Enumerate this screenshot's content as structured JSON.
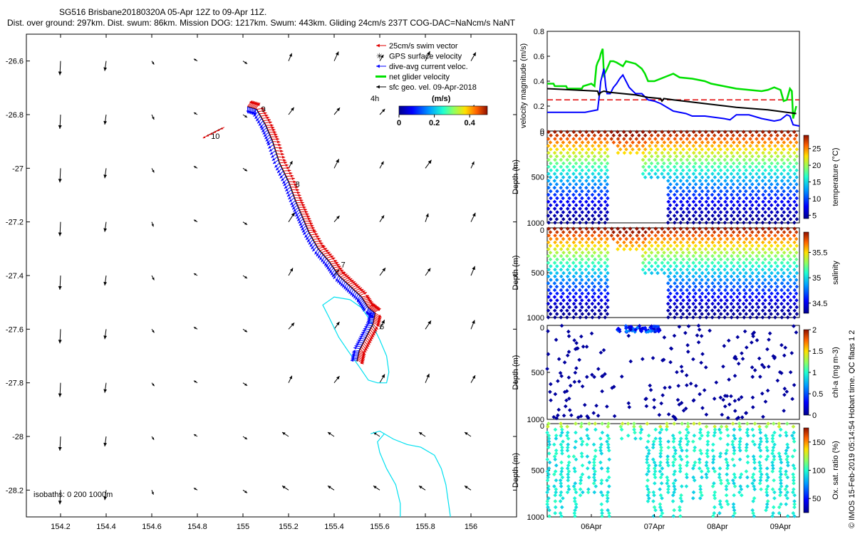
{
  "title": {
    "line1": "SG516 Brisbane20180320A 05-Apr 12Z to 09-Apr 11Z.",
    "line2": "Dist. over ground: 297km. Dist. swum: 86km. Mission DOG: 1217km. Swum: 443km. Gliding 24cm/s 237T COG-DAC=NaNcm/s NaNT"
  },
  "credit": "© IMOS 15-Feb-2019 05:14:54 Hobart time. QC flags 1  2",
  "colors": {
    "swim_vector": "#e00000",
    "gps_velocity": "#9030c0",
    "dac": "#0000ff",
    "net": "#00e000",
    "sfc": "#000000",
    "isobath": "#00e0f0",
    "threshold": "#e00000"
  },
  "map": {
    "xlim": [
      154.05,
      156.2
    ],
    "ylim": [
      -28.3,
      -26.5
    ],
    "xticks": [
      "154.2",
      "154.4",
      "154.6",
      "154.8",
      "155",
      "155.2",
      "155.4",
      "155.6",
      "155.8",
      "156"
    ],
    "yticks": [
      "-26.6",
      "-26.8",
      "-27",
      "-27.2",
      "-27.4",
      "-27.6",
      "-27.8",
      "-28",
      "-28.2"
    ],
    "legend": [
      {
        "label": "25cm/s swim vector",
        "kind": "arrow",
        "color": "#e00000"
      },
      {
        "label": "GPS surface velocity",
        "kind": "star",
        "color": "#9030c0"
      },
      {
        "label": "dive-avg current veloc.",
        "kind": "arrow",
        "color": "#0000ff"
      },
      {
        "label": "net glider velocity",
        "kind": "thick",
        "color": "#00e000"
      },
      {
        "label": "sfc geo. vel. 09-Apr-2018",
        "kind": "arrow",
        "color": "#000000"
      }
    ],
    "scale_label": "4h",
    "colorbar_units": "(m/s)",
    "colorbar_ticks": [
      "0",
      "0.2",
      "0.4"
    ],
    "colorbar_range": [
      0,
      0.5
    ],
    "isobaths_label": "isobaths: 0   200  1000m",
    "day_labels": [
      {
        "text": "9",
        "lon": 155.08,
        "lat": -26.79
      },
      {
        "text": "10",
        "lon": 154.86,
        "lat": -26.89
      },
      {
        "text": "8",
        "lon": 155.23,
        "lat": -27.07
      },
      {
        "text": "7",
        "lon": 155.43,
        "lat": -27.37
      },
      {
        "text": "6",
        "lon": 155.6,
        "lat": -27.6
      }
    ],
    "track": [
      [
        155.02,
        -26.77
      ],
      [
        155.06,
        -26.78
      ],
      [
        155.1,
        -26.84
      ],
      [
        155.13,
        -26.9
      ],
      [
        155.16,
        -26.98
      ],
      [
        155.2,
        -27.05
      ],
      [
        155.23,
        -27.12
      ],
      [
        155.26,
        -27.18
      ],
      [
        155.29,
        -27.24
      ],
      [
        155.33,
        -27.3
      ],
      [
        155.38,
        -27.35
      ],
      [
        155.42,
        -27.4
      ],
      [
        155.47,
        -27.44
      ],
      [
        155.52,
        -27.48
      ],
      [
        155.55,
        -27.52
      ],
      [
        155.58,
        -27.54
      ],
      [
        155.57,
        -27.58
      ],
      [
        155.54,
        -27.63
      ],
      [
        155.51,
        -27.68
      ],
      [
        155.5,
        -27.72
      ]
    ],
    "track_end": [
      [
        154.84,
        -26.88
      ],
      [
        154.91,
        -26.85
      ]
    ],
    "isobath_1": [
      [
        155.47,
        -27.49
      ],
      [
        155.4,
        -27.48
      ],
      [
        155.35,
        -27.51
      ],
      [
        155.38,
        -27.56
      ],
      [
        155.42,
        -27.63
      ],
      [
        155.46,
        -27.68
      ],
      [
        155.51,
        -27.74
      ],
      [
        155.55,
        -27.79
      ],
      [
        155.59,
        -27.8
      ],
      [
        155.63,
        -27.8
      ],
      [
        155.64,
        -27.76
      ],
      [
        155.63,
        -27.7
      ],
      [
        155.6,
        -27.64
      ],
      [
        155.56,
        -27.57
      ],
      [
        155.52,
        -27.52
      ],
      [
        155.47,
        -27.49
      ]
    ],
    "isobath_2": [
      [
        155.56,
        -27.99
      ],
      [
        155.6,
        -27.98
      ],
      [
        155.66,
        -28.01
      ],
      [
        155.72,
        -28.03
      ],
      [
        155.78,
        -28.04
      ],
      [
        155.84,
        -28.07
      ],
      [
        155.87,
        -28.12
      ],
      [
        155.89,
        -28.18
      ],
      [
        155.9,
        -28.24
      ],
      [
        155.91,
        -28.3
      ]
    ],
    "isobath_3": [
      [
        155.69,
        -28.3
      ],
      [
        155.69,
        -28.25
      ],
      [
        155.67,
        -28.18
      ],
      [
        155.63,
        -28.12
      ],
      [
        155.6,
        -28.06
      ],
      [
        155.59,
        -28.02
      ],
      [
        155.62,
        -27.99
      ]
    ]
  },
  "chart_data": [
    {
      "type": "line",
      "title": "",
      "xlabel": "",
      "ylabel": "velocity magnitude (m/s)",
      "xlim": [
        0,
        4
      ],
      "ylim": [
        0,
        0.8
      ],
      "yticks": [
        "0",
        "0.2",
        "0.4",
        "0.6",
        "0.8"
      ],
      "threshold": 0.25,
      "series": [
        {
          "name": "net glider velocity",
          "color": "#00e000",
          "x": [
            0,
            0.1,
            0.12,
            0.3,
            0.32,
            0.55,
            0.57,
            0.7,
            0.75,
            0.78,
            0.8,
            0.83,
            0.85,
            0.88,
            0.9,
            0.95,
            1.0,
            1.05,
            1.1,
            1.2,
            1.25,
            1.4,
            1.5,
            1.55,
            1.6,
            1.7,
            2.0,
            2.1,
            2.3,
            2.5,
            2.6,
            2.8,
            3.0,
            3.2,
            3.4,
            3.5,
            3.55,
            3.6,
            3.7,
            3.75,
            3.8,
            3.85,
            3.88,
            3.9,
            3.95
          ],
          "y": [
            0.38,
            0.38,
            0.36,
            0.36,
            0.34,
            0.34,
            0.36,
            0.38,
            0.36,
            0.52,
            0.55,
            0.58,
            0.62,
            0.66,
            0.45,
            0.5,
            0.56,
            0.56,
            0.55,
            0.52,
            0.56,
            0.54,
            0.5,
            0.46,
            0.4,
            0.4,
            0.46,
            0.43,
            0.42,
            0.4,
            0.38,
            0.36,
            0.34,
            0.33,
            0.32,
            0.33,
            0.34,
            0.35,
            0.33,
            0.24,
            0.25,
            0.34,
            0.32,
            0.1,
            0.2
          ]
        },
        {
          "name": "dive-avg current veloc.",
          "color": "#0000ff",
          "x": [
            0,
            0.3,
            0.6,
            0.8,
            0.83,
            0.85,
            0.9,
            0.93,
            0.95,
            1.0,
            1.05,
            1.1,
            1.15,
            1.2,
            1.3,
            1.4,
            1.5,
            1.6,
            1.7,
            1.8,
            2.0,
            2.2,
            2.3,
            2.5,
            2.8,
            2.9,
            3.0,
            3.2,
            3.4,
            3.6,
            3.7,
            3.8,
            3.85,
            3.9,
            4.0
          ],
          "y": [
            0.15,
            0.15,
            0.15,
            0.17,
            0.3,
            0.4,
            0.5,
            0.35,
            0.3,
            0.3,
            0.35,
            0.38,
            0.42,
            0.45,
            0.35,
            0.3,
            0.3,
            0.25,
            0.24,
            0.22,
            0.16,
            0.14,
            0.12,
            0.12,
            0.1,
            0.09,
            0.13,
            0.13,
            0.1,
            0.08,
            0.09,
            0.13,
            0.12,
            0.05,
            0.04
          ]
        },
        {
          "name": "sfc speed",
          "color": "#000000",
          "x": [
            0,
            0.4,
            0.8,
            0.82,
            0.85,
            0.9,
            1.0,
            1.2,
            1.4,
            1.6,
            1.8,
            1.82,
            1.85,
            2.0,
            2.5,
            3.0,
            3.5,
            3.95
          ],
          "y": [
            0.34,
            0.33,
            0.32,
            0.29,
            0.31,
            0.32,
            0.31,
            0.3,
            0.29,
            0.27,
            0.26,
            0.24,
            0.26,
            0.25,
            0.22,
            0.19,
            0.17,
            0.14
          ]
        }
      ]
    },
    {
      "type": "scatter",
      "ylabel": "Depth (m)",
      "clabel": "temperature (°C)",
      "yticks": [
        "0",
        "500",
        "1000"
      ],
      "ylim": [
        1000,
        0
      ],
      "cticks": [
        "5",
        "10",
        "15",
        "20",
        "25"
      ],
      "crange": [
        4,
        29
      ],
      "colormap": "parula-jet",
      "pattern": {
        "gap_start": 0.98,
        "gap_end": 1.55,
        "shallow_until": 1.5,
        "shallow_depth": 250,
        "mid_until": 1.85,
        "mid_depth": 520
      }
    },
    {
      "type": "scatter",
      "ylabel": "Depth (m)",
      "clabel": "salinity",
      "yticks": [
        "0",
        "500",
        "1000"
      ],
      "ylim": [
        1000,
        0
      ],
      "cticks": [
        "34.5",
        "35",
        "35.5"
      ],
      "crange": [
        34.3,
        35.9
      ],
      "colormap": "parula-jet",
      "pattern": {
        "gap_start": 0.98,
        "gap_end": 1.55,
        "shallow_until": 1.5,
        "shallow_depth": 250,
        "mid_until": 1.85,
        "mid_depth": 520
      }
    },
    {
      "type": "scatter",
      "ylabel": "Depth (m)",
      "clabel": "chl-a (mg m-3)",
      "yticks": [
        "0",
        "500",
        "1000"
      ],
      "ylim": [
        1000,
        0
      ],
      "cticks": [
        "0",
        "0.5",
        "1",
        "1.5",
        "2"
      ],
      "crange": [
        0,
        2
      ],
      "colormap": "parula-jet"
    },
    {
      "type": "scatter",
      "ylabel": "Depth (m)",
      "clabel": "Ox. sat. ratio (%)",
      "yticks": [
        "0",
        "500",
        "1000"
      ],
      "ylim": [
        1000,
        0
      ],
      "cticks": [
        "50",
        "100",
        "150"
      ],
      "crange": [
        25,
        175
      ],
      "colormap": "parula-jet",
      "xticks": [
        "06Apr",
        "07Apr",
        "08Apr",
        "09Apr"
      ],
      "xlim": [
        0,
        4
      ]
    }
  ]
}
